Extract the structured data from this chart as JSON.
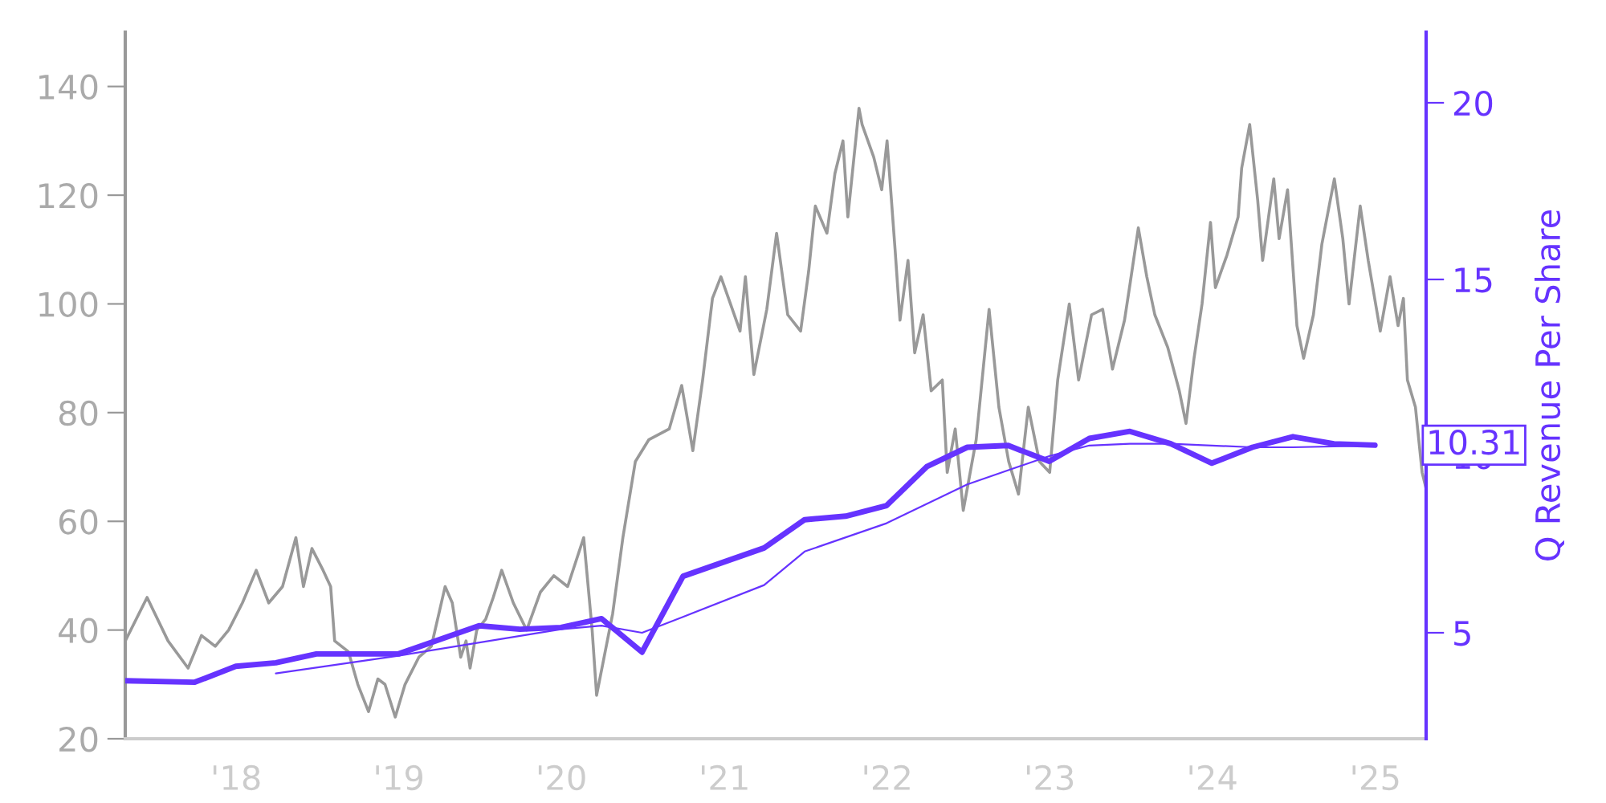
{
  "chart_data": {
    "type": "line",
    "y2label": "Q Revenue Per Share",
    "xlim": [
      "2017-04-27",
      "2025-04-25"
    ],
    "xticks": [
      {
        "value": "2018-01-01",
        "label": "'18"
      },
      {
        "value": "2019-01-01",
        "label": "'19"
      },
      {
        "value": "2020-01-01",
        "label": "'20"
      },
      {
        "value": "2021-01-01",
        "label": "'21"
      },
      {
        "value": "2022-01-01",
        "label": "'22"
      },
      {
        "value": "2023-01-01",
        "label": "'23"
      },
      {
        "value": "2024-01-01",
        "label": "'24"
      },
      {
        "value": "2025-01-01",
        "label": "'25"
      }
    ],
    "ylim": [
      20,
      150
    ],
    "yticks": [
      20,
      40,
      60,
      80,
      100,
      120,
      140
    ],
    "y2lim": [
      2,
      22
    ],
    "y2ticks": [
      5,
      10,
      15,
      20
    ],
    "grid": false,
    "legend": false,
    "marker": "none",
    "line_style": "solid",
    "annotations": [
      "10.31"
    ],
    "series": [
      {
        "color": "#999999",
        "x": [
          "2017-04-27",
          "2017-06-15",
          "2017-08-01",
          "2017-09-15",
          "2017-10-15",
          "2017-11-15",
          "2017-12-15",
          "2018-01-15",
          "2018-02-15",
          "2018-03-15",
          "2018-04-15",
          "2018-05-15",
          "2018-06-01",
          "2018-06-20",
          "2018-07-15",
          "2018-08-01",
          "2018-08-10",
          "2018-09-10",
          "2018-10-01",
          "2018-10-25",
          "2018-11-15",
          "2018-12-01",
          "2018-12-24",
          "2019-01-15",
          "2019-02-15",
          "2019-03-15",
          "2019-04-15",
          "2019-05-01",
          "2019-05-20",
          "2019-06-01",
          "2019-06-10",
          "2019-06-25",
          "2019-07-15",
          "2019-08-01",
          "2019-08-20",
          "2019-09-15",
          "2019-10-15",
          "2019-11-15",
          "2019-12-15",
          "2020-01-15",
          "2020-02-20",
          "2020-03-10",
          "2020-03-20",
          "2020-04-25",
          "2020-05-18",
          "2020-06-15",
          "2020-07-15",
          "2020-08-30",
          "2020-09-27",
          "2020-10-22",
          "2020-11-13",
          "2020-12-05",
          "2020-12-24",
          "2021-02-05",
          "2021-02-17",
          "2021-03-08",
          "2021-04-06",
          "2021-04-28",
          "2021-05-23",
          "2021-06-21",
          "2021-07-09",
          "2021-07-24",
          "2021-08-19",
          "2021-09-06",
          "2021-09-24",
          "2021-10-05",
          "2021-10-30",
          "2021-11-06",
          "2021-12-02",
          "2021-12-20",
          "2022-01-01",
          "2022-01-19",
          "2022-01-30",
          "2022-02-17",
          "2022-03-04",
          "2022-03-23",
          "2022-04-10",
          "2022-05-05",
          "2022-05-16",
          "2022-06-03",
          "2022-06-21",
          "2022-07-20",
          "2022-08-18",
          "2022-09-09",
          "2022-10-01",
          "2022-10-23",
          "2022-11-14",
          "2022-12-09",
          "2023-01-01",
          "2023-01-19",
          "2023-02-14",
          "2023-03-07",
          "2023-04-05",
          "2023-04-30",
          "2023-05-22",
          "2023-06-18",
          "2023-07-01",
          "2023-07-19",
          "2023-08-07",
          "2023-08-25",
          "2023-09-23",
          "2023-10-19",
          "2023-11-03",
          "2023-11-21",
          "2023-12-09",
          "2023-12-28",
          "2024-01-08",
          "2024-02-03",
          "2024-02-28",
          "2024-03-07",
          "2024-03-25",
          "2024-04-12",
          "2024-04-23",
          "2024-05-18",
          "2024-05-30",
          "2024-06-18",
          "2024-07-09",
          "2024-07-24",
          "2024-08-15",
          "2024-09-03",
          "2024-10-01",
          "2024-10-20",
          "2024-11-03",
          "2024-11-28",
          "2024-12-16",
          "2025-01-12",
          "2025-02-03",
          "2025-02-21",
          "2025-03-05",
          "2025-03-14",
          "2025-04-01",
          "2025-04-16",
          "2025-04-25"
        ],
        "values": [
          38,
          46,
          38,
          33,
          39,
          37,
          40,
          45,
          51,
          45,
          48,
          57,
          48,
          55,
          51,
          48,
          38,
          36,
          30,
          25,
          31,
          30,
          24,
          30,
          35,
          37,
          48,
          45,
          35,
          38,
          33,
          40,
          42,
          46,
          51,
          45,
          40,
          47,
          50,
          48,
          57,
          40,
          28,
          43,
          57,
          71,
          75,
          77,
          85,
          73,
          86,
          101,
          105,
          95,
          105,
          87,
          99,
          113,
          98,
          95,
          106,
          118,
          113,
          124,
          130,
          116,
          136,
          133,
          127,
          121,
          130,
          110,
          97,
          108,
          91,
          98,
          84,
          86,
          69,
          77,
          62,
          75,
          99,
          81,
          71,
          65,
          81,
          71,
          69,
          86,
          100,
          86,
          98,
          99,
          88,
          97,
          104,
          114,
          105,
          98,
          92,
          84,
          78,
          90,
          100,
          115,
          103,
          109,
          116,
          125,
          133,
          119,
          108,
          123,
          112,
          121,
          96,
          90,
          98,
          111,
          123,
          112,
          100,
          118,
          108,
          95,
          105,
          96,
          101,
          86,
          81,
          69,
          66
        ]
      },
      {
        "axis": "y2",
        "color": "#6633ff",
        "x": [
          "2017-04-27",
          "2017-09-30",
          "2017-12-31",
          "2018-03-31",
          "2018-06-30",
          "2018-12-31",
          "2019-06-30",
          "2019-09-30",
          "2019-12-31",
          "2020-03-31",
          "2020-06-30",
          "2020-09-30",
          "2021-03-31",
          "2021-06-30",
          "2021-09-30",
          "2021-12-31",
          "2022-03-31",
          "2022-06-30",
          "2022-09-30",
          "2022-12-31",
          "2023-03-31",
          "2023-06-30",
          "2023-09-30",
          "2023-12-31",
          "2024-03-31",
          "2024-06-30",
          "2024-09-30",
          "2024-12-31"
        ],
        "values": [
          3.64,
          3.6,
          4.05,
          4.15,
          4.4,
          4.4,
          5.2,
          5.1,
          5.15,
          5.4,
          4.45,
          6.6,
          7.4,
          8.2,
          8.3,
          8.6,
          9.7,
          10.25,
          10.3,
          9.85,
          10.5,
          10.7,
          10.35,
          9.8,
          10.25,
          10.55,
          10.35,
          10.31
        ]
      },
      {
        "axis": "y2",
        "color": "#6633ff",
        "x": [
          "2018-03-31",
          "2018-12-31",
          "2019-12-31",
          "2020-03-31",
          "2020-06-30",
          "2020-09-30",
          "2021-03-31",
          "2021-06-30",
          "2021-12-31",
          "2022-06-30",
          "2022-12-31",
          "2023-03-31",
          "2023-06-30",
          "2023-09-30",
          "2023-12-31",
          "2024-03-31",
          "2024-06-30",
          "2024-12-31"
        ],
        "values": [
          3.85,
          4.35,
          5.1,
          5.2,
          5.0,
          5.45,
          6.35,
          7.3,
          8.1,
          9.2,
          10.0,
          10.3,
          10.35,
          10.35,
          10.3,
          10.25,
          10.25,
          10.3
        ]
      }
    ]
  }
}
